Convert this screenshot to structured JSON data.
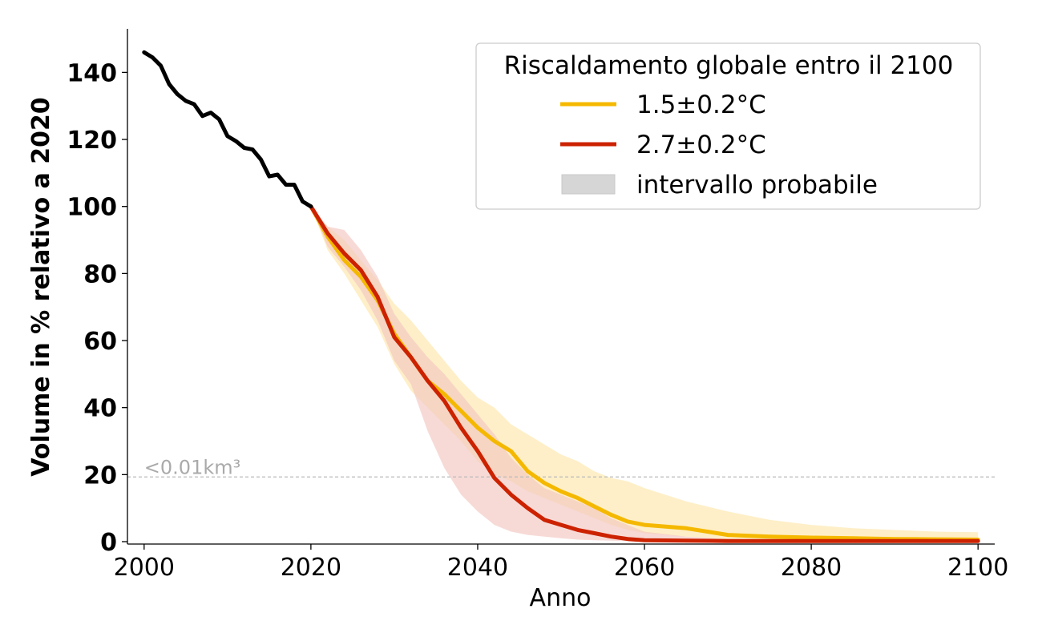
{
  "chart_data": {
    "type": "line",
    "xlabel": "Anno",
    "ylabel": "Volume in % relativo a 2020",
    "xlim": [
      1998,
      2102
    ],
    "ylim": [
      0,
      153
    ],
    "xticks": [
      2000,
      2020,
      2040,
      2060,
      2080,
      2100
    ],
    "yticks": [
      0,
      20,
      40,
      60,
      80,
      100,
      120,
      140
    ],
    "grid": false,
    "legend": {
      "title": "Riscaldamento globale entro il 2100",
      "placement": "top-right",
      "entries": [
        "1.5±0.2°C",
        "2.7±0.2°C",
        "intervallo probabile"
      ]
    },
    "threshold": {
      "y": 19.3,
      "label": "<0.01km³",
      "color": "#bbbbbb"
    },
    "observed": {
      "color": "#000000",
      "x": [
        2000,
        2001,
        2002,
        2003,
        2004,
        2005,
        2006,
        2007,
        2008,
        2009,
        2010,
        2011,
        2012,
        2013,
        2014,
        2015,
        2016,
        2017,
        2018,
        2019,
        2020
      ],
      "values": [
        146,
        144.5,
        142,
        136.5,
        133.5,
        131.5,
        130.5,
        127,
        128,
        126,
        121,
        119.5,
        117.5,
        117,
        114,
        109,
        109.5,
        106.5,
        106.5,
        101.5,
        100
      ]
    },
    "x": [
      2020,
      2022,
      2024,
      2026,
      2028,
      2030,
      2032,
      2034,
      2036,
      2038,
      2040,
      2042,
      2044,
      2046,
      2048,
      2050,
      2052,
      2054,
      2056,
      2058,
      2060,
      2065,
      2070,
      2075,
      2080,
      2085,
      2090,
      2095,
      2100
    ],
    "series": [
      {
        "name": "1.5±0.2°C",
        "color": "#f5b800",
        "band_color": "#fde9b5",
        "values": [
          100,
          91,
          84,
          79,
          72,
          62,
          55,
          48,
          44,
          39,
          34,
          30,
          27,
          21,
          17.5,
          15,
          13,
          10.5,
          8,
          6,
          5,
          4,
          2,
          1.5,
          1.2,
          1,
          0.8,
          0.7,
          0.6
        ],
        "lower": [
          100,
          87,
          80,
          72,
          64,
          53,
          45,
          40,
          35,
          30,
          24,
          20,
          18,
          15,
          13,
          11,
          9,
          7,
          5,
          3.5,
          2.5,
          1.5,
          0.8,
          0.5,
          0.3,
          0.2,
          0.1,
          0.1,
          0.1
        ],
        "upper": [
          100,
          94,
          90,
          84,
          78,
          71,
          66,
          60,
          54,
          48,
          43,
          40,
          35,
          32,
          29,
          26,
          24,
          21,
          19,
          18,
          16,
          12,
          9,
          6.5,
          5,
          4,
          3.5,
          3,
          2.8
        ]
      },
      {
        "name": "2.7±0.2°C",
        "color": "#cc2200",
        "band_color": "#f2c6c0",
        "values": [
          100,
          92,
          86,
          81,
          73,
          61,
          55,
          48,
          42,
          34,
          27,
          19,
          14,
          10,
          6.5,
          5,
          3.5,
          2.5,
          1.5,
          0.8,
          0.4,
          0.3,
          0.2,
          0.2,
          0.2,
          0.2,
          0.2,
          0.2,
          0.2
        ],
        "lower": [
          100,
          88,
          82,
          75,
          66,
          54,
          47,
          33,
          22,
          14,
          9,
          5,
          3,
          2,
          1.5,
          1,
          0.6,
          0.4,
          0.3,
          0.2,
          0.1,
          0.1,
          0.1,
          0.1,
          0.1,
          0.1,
          0.1,
          0.1,
          0.1
        ],
        "upper": [
          100,
          94,
          93,
          87,
          79,
          68,
          61,
          55,
          50,
          44,
          38,
          32,
          25,
          20,
          16,
          14,
          12,
          10,
          7,
          5,
          3,
          1.5,
          0.8,
          0.5,
          0.3,
          0.3,
          0.3,
          0.3,
          0.3
        ]
      }
    ]
  }
}
